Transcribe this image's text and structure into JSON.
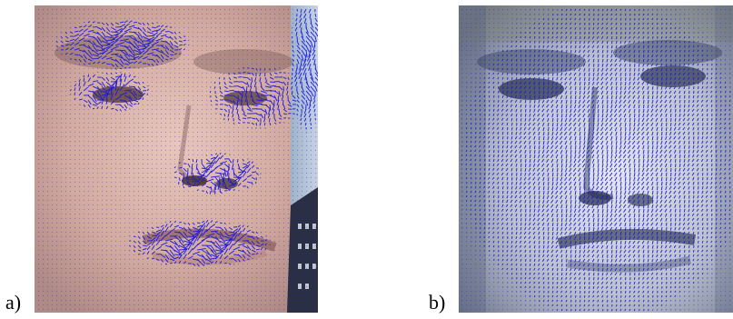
{
  "figure": {
    "panels": [
      {
        "label": "a)",
        "image": "face-photo-color-with-blue-optical-flow-vectors",
        "tone": "color"
      },
      {
        "label": "b)",
        "image": "face-photo-grayscale-with-blue-optical-flow-vectors",
        "tone": "grayscale"
      }
    ],
    "colors": {
      "vector": "#1a1ae0",
      "skin_a": "#cfa89c",
      "gray_b": "#b9bfcc"
    }
  }
}
